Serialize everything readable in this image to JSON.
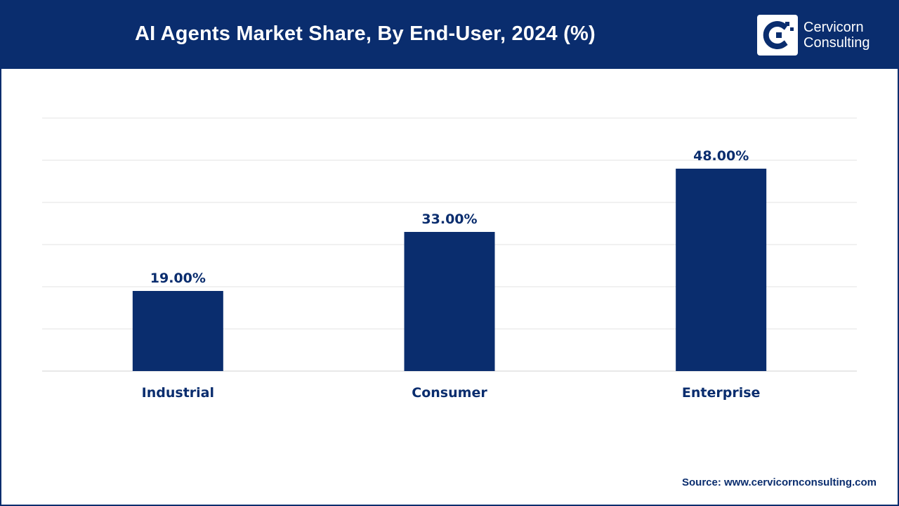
{
  "header": {
    "title": "AI Agents Market Share, By End-User, 2024 (%)",
    "logo_line1": "Cervicorn",
    "logo_line2": "Consulting"
  },
  "colors": {
    "brand": "#0a2d6e",
    "bar": "#0a2d6e",
    "grid": "#e3e3e3",
    "background": "#ffffff"
  },
  "chart_data": {
    "type": "bar",
    "title": "AI Agents Market Share, By End-User, 2024 (%)",
    "categories": [
      "Industrial",
      "Consumer",
      "Enterprise"
    ],
    "values": [
      19,
      33,
      48
    ],
    "value_labels": [
      "19.00%",
      "33.00%",
      "48.00%"
    ],
    "xlabel": "",
    "ylabel": "",
    "ylim": [
      0,
      60
    ],
    "grid": true
  },
  "source": "Source: www.cervicornconsulting.com"
}
